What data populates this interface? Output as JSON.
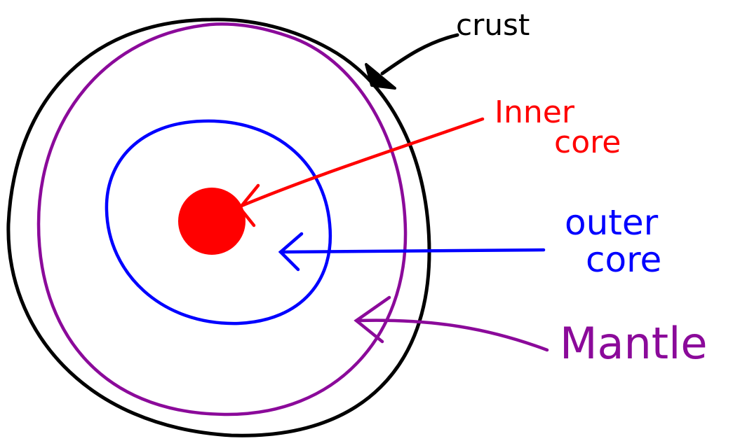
{
  "labels": [
    {
      "lines": [
        "crust"
      ]
    },
    {
      "lines": [
        "Inner",
        "core"
      ]
    },
    {
      "lines": [
        "outer",
        "core"
      ]
    },
    {
      "lines": [
        "Mantle"
      ]
    }
  ]
}
